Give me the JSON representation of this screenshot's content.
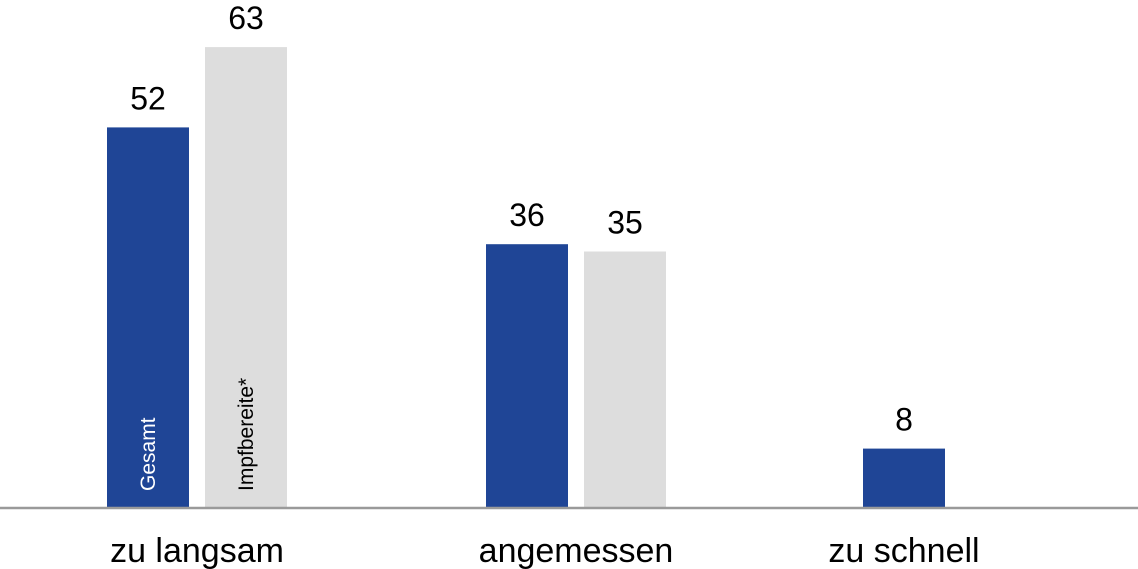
{
  "chart_data": {
    "type": "bar",
    "categories": [
      "zu langsam",
      "angemessen",
      "zu schnell"
    ],
    "series": [
      {
        "name": "Gesamt",
        "values": [
          52,
          36,
          8
        ],
        "color": "#1f4596",
        "label_color": "#ffffff"
      },
      {
        "name": "Impfbereite*",
        "values": [
          63,
          35,
          null
        ],
        "color": "#dddddd",
        "label_color": "#000000"
      }
    ],
    "ylim": [
      0,
      100
    ],
    "grid": false,
    "legend": "inside-first-bars-vertical",
    "title": "",
    "xlabel": "",
    "ylabel": "",
    "baseline_color": "#9a9a9a"
  }
}
